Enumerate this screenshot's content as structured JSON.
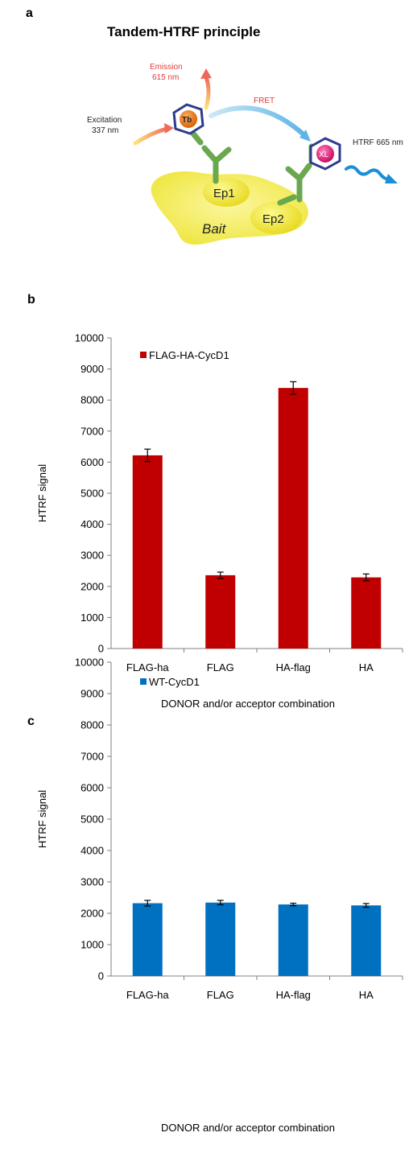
{
  "panel_labels": {
    "a": "a",
    "b": "b",
    "c": "c"
  },
  "diagram": {
    "title": "Tandem-HTRF principle",
    "emission_label": "Emission",
    "emission_value": "615 nm",
    "excitation_label": "Excitation",
    "excitation_value": "337 nm",
    "fret_label": "FRET",
    "htrf_label": "HTRF 665 nm",
    "donor_label": "Tb",
    "acceptor_label": "XL",
    "ep1_label": "Ep1",
    "ep2_label": "Ep2",
    "bait_label": "Bait",
    "colors": {
      "red_text": "#e23b3b",
      "bait_yellow": "#f4ef4a",
      "antibody_green": "#6aa84f",
      "fret_arrow": "#8ec9ea",
      "htrf_wave": "#1b8ed8",
      "donor_orange": "#e8781e",
      "acceptor_pink": "#e0207a"
    }
  },
  "chart_data": [
    {
      "type": "bar",
      "categories": [
        "FLAG-ha",
        "FLAG",
        "HA-flag",
        "HA"
      ],
      "series": [
        {
          "name": "FLAG-HA-CycD1",
          "values": [
            6220,
            2360,
            8390,
            2290
          ],
          "errors": [
            200,
            100,
            200,
            110
          ],
          "color": "#c00000"
        }
      ],
      "ylabel": "HTRF signal",
      "xlabel": "DONOR and/or acceptor combination",
      "ylim": [
        0,
        10000
      ],
      "yticks": [
        0,
        1000,
        2000,
        3000,
        4000,
        5000,
        6000,
        7000,
        8000,
        9000,
        10000
      ],
      "grid": false,
      "legend": "top-left"
    },
    {
      "type": "bar",
      "categories": [
        "FLAG-ha",
        "FLAG",
        "HA-flag",
        "HA"
      ],
      "series": [
        {
          "name": "WT-CycD1",
          "values": [
            2320,
            2340,
            2280,
            2250
          ],
          "errors": [
            90,
            70,
            40,
            60
          ],
          "color": "#0070c0"
        }
      ],
      "ylabel": "HTRF signal",
      "xlabel": "DONOR and/or acceptor combination",
      "ylim": [
        0,
        10000
      ],
      "yticks": [
        0,
        1000,
        2000,
        3000,
        4000,
        5000,
        6000,
        7000,
        8000,
        9000,
        10000
      ],
      "grid": false,
      "legend": "top-left"
    }
  ]
}
